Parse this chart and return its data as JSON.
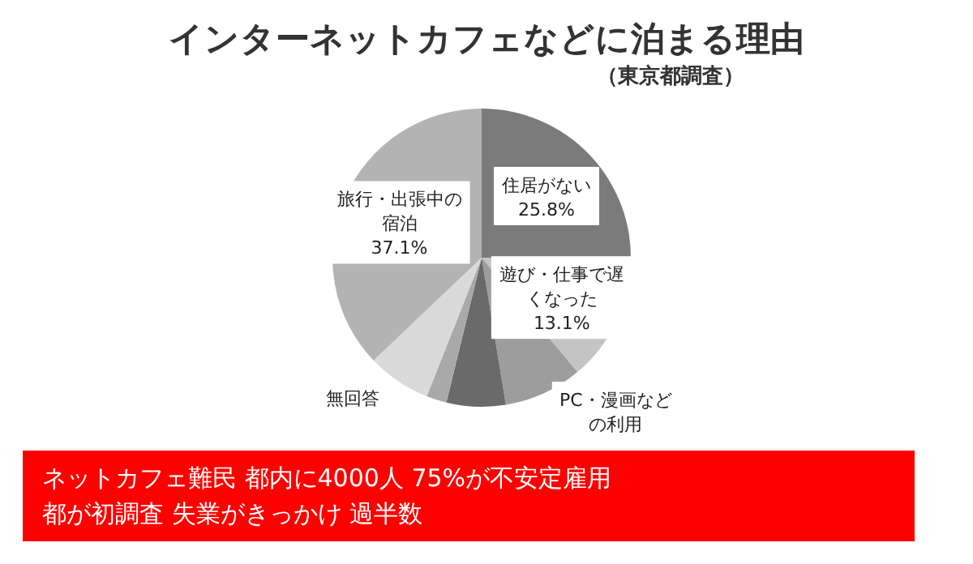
{
  "chart_data": {
    "type": "pie",
    "title": "インターネットカフェなどに泊まる理由",
    "subtitle": "（東京都調査）",
    "categories": [
      "住居がない",
      "遊び・仕事で遅くなった",
      "PC・漫画などの利用",
      null,
      null,
      "無回答",
      "旅行・出張中の宿泊"
    ],
    "values": [
      25.8,
      13.1,
      8.5,
      6.4,
      2.2,
      6.9,
      37.1
    ],
    "value_labels": [
      "25.8%",
      "13.1%",
      null,
      null,
      null,
      null,
      "37.1%"
    ],
    "colors": [
      "#7b7b7b",
      "#c4c4c4",
      "#9d9d9d",
      "#6a6a6a",
      "#a9a9a9",
      "#dadada",
      "#b3b3b3"
    ],
    "annotations": [
      "ネットカフェ難民 都内に4000人 75%が不安定雇用",
      "都が初調査 失業がきっかけ 過半数"
    ]
  }
}
